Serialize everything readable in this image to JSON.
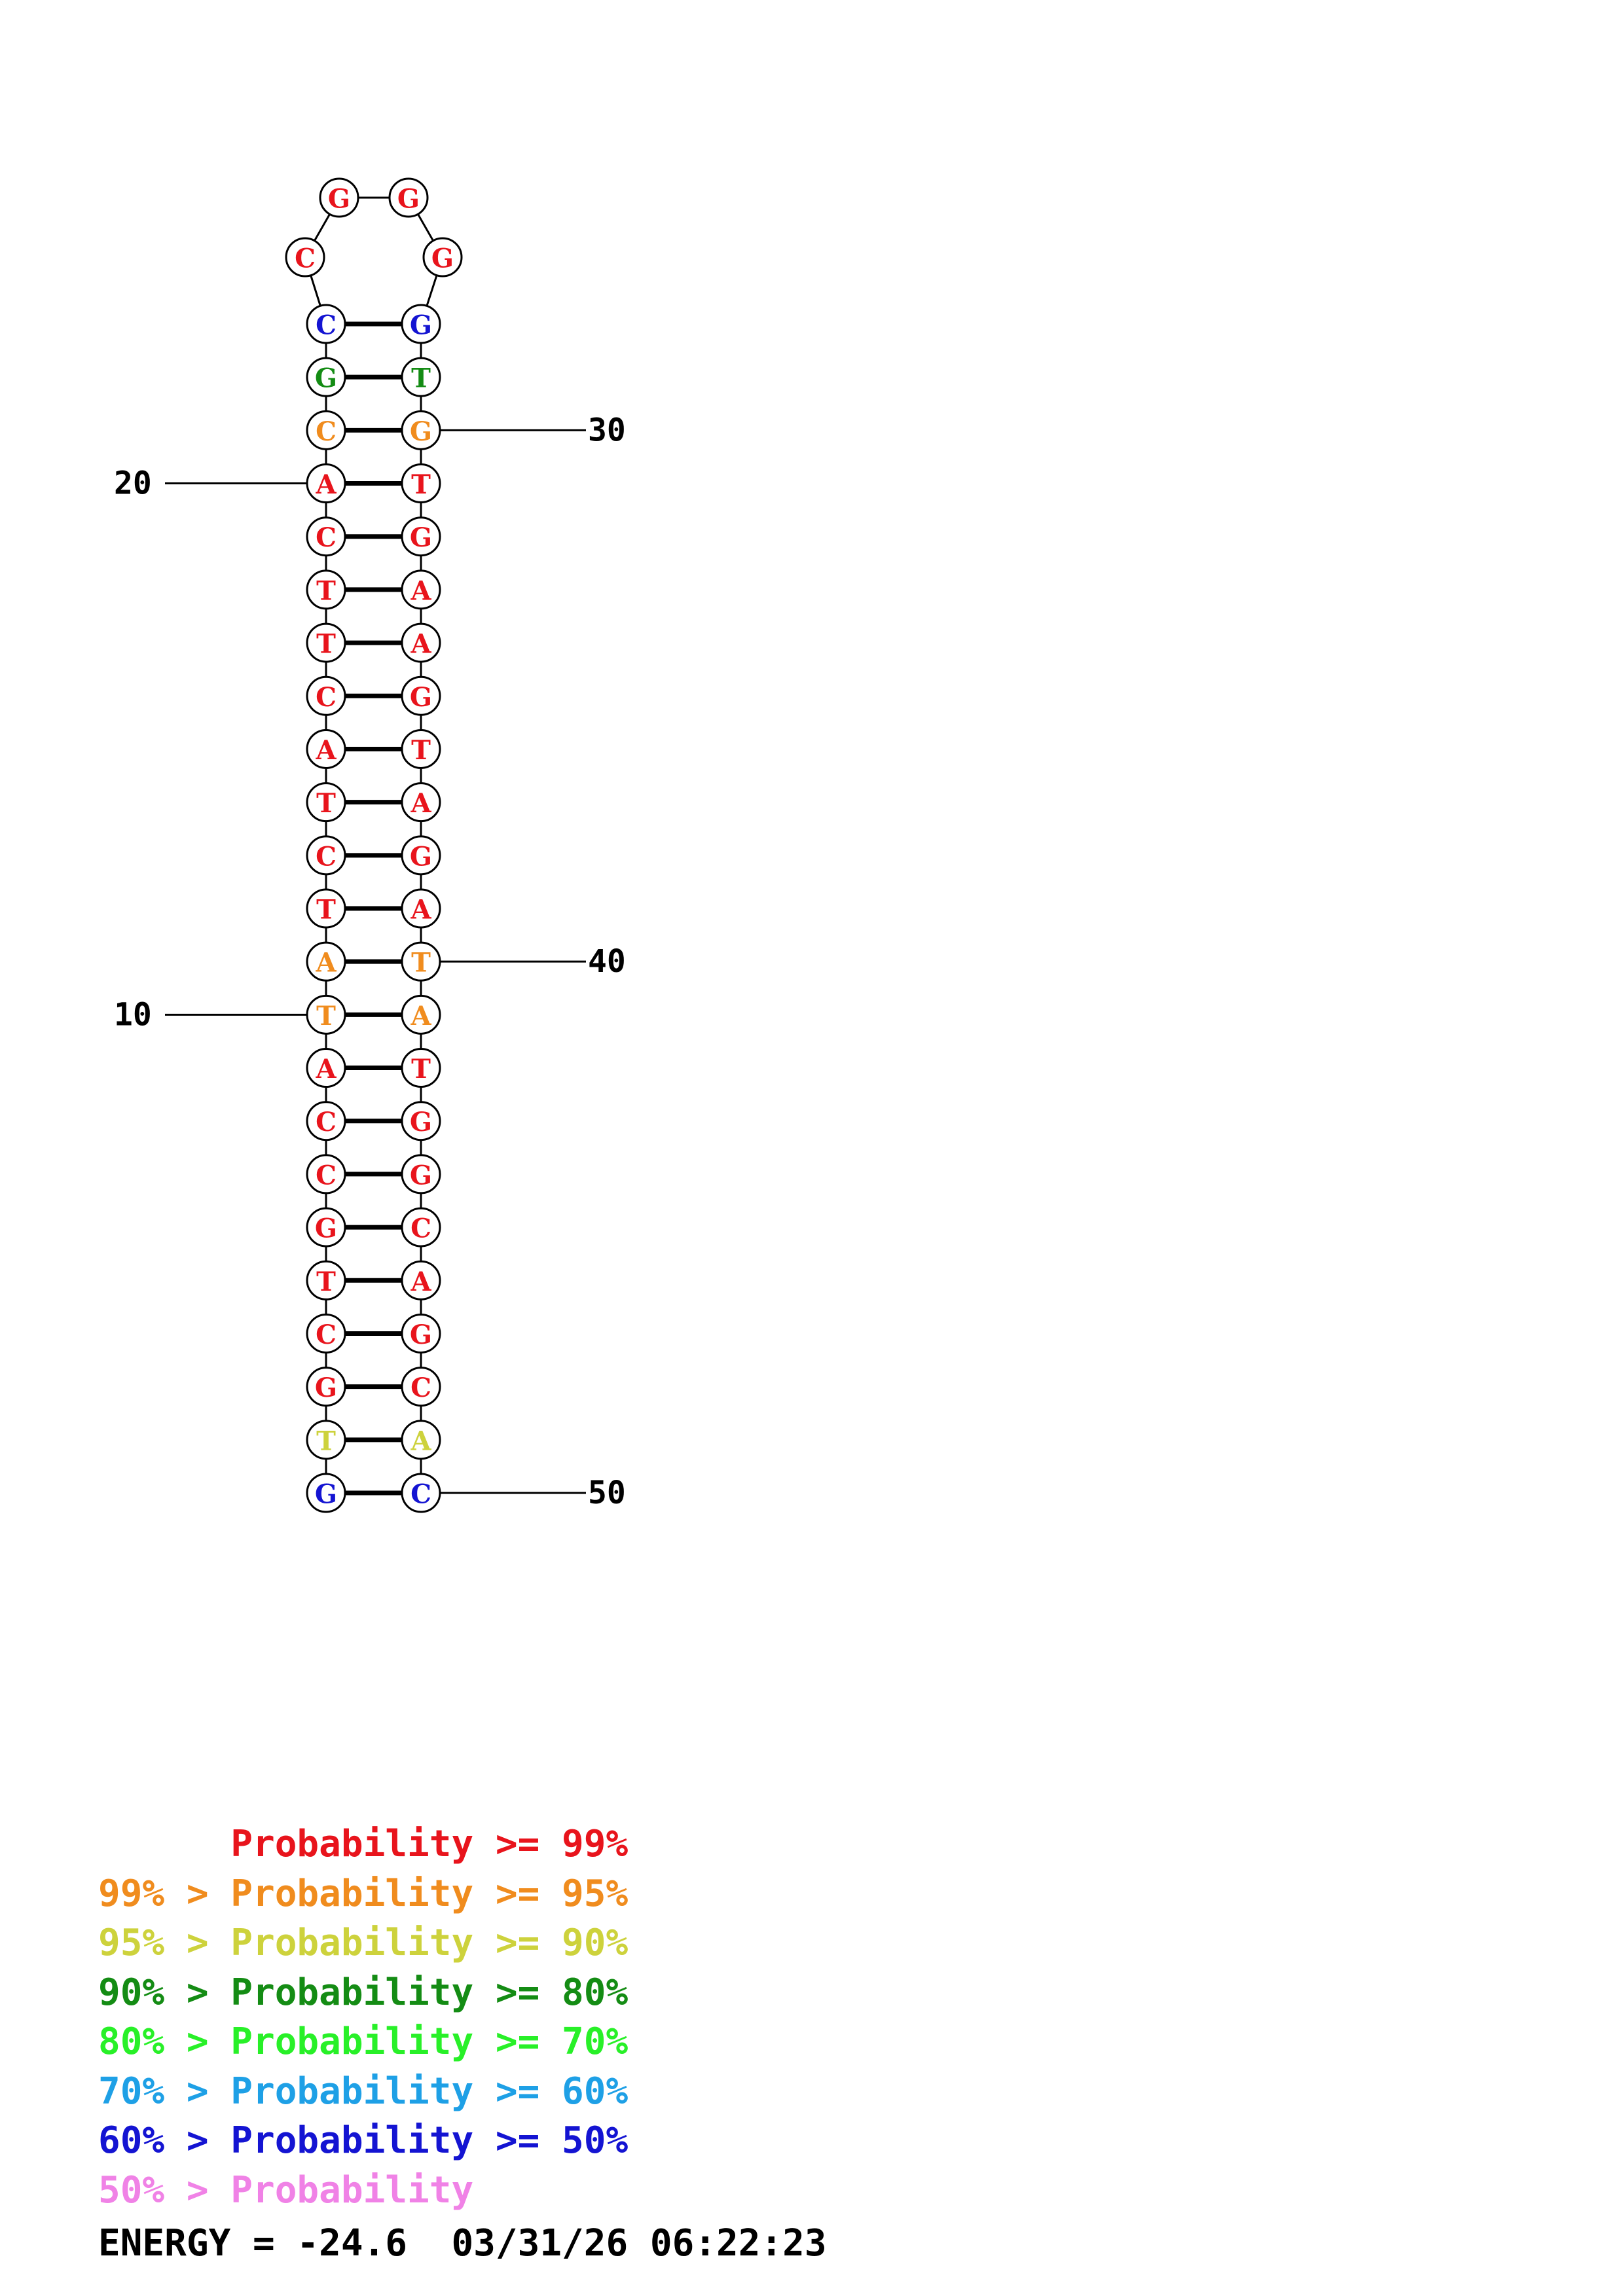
{
  "colors": {
    "p99": "#e8141c",
    "p95": "#f08c1e",
    "p90": "#cdd23c",
    "p80": "#148c14",
    "p70": "#28f028",
    "p60": "#1ea0e6",
    "p50": "#1414d2",
    "plt50": "#f082e6"
  },
  "structure": {
    "left_strand": [
      {
        "pos": 1,
        "base": "G",
        "tier": "p50"
      },
      {
        "pos": 2,
        "base": "T",
        "tier": "p90"
      },
      {
        "pos": 3,
        "base": "G",
        "tier": "p99"
      },
      {
        "pos": 4,
        "base": "C",
        "tier": "p99"
      },
      {
        "pos": 5,
        "base": "T",
        "tier": "p99"
      },
      {
        "pos": 6,
        "base": "G",
        "tier": "p99"
      },
      {
        "pos": 7,
        "base": "C",
        "tier": "p99"
      },
      {
        "pos": 8,
        "base": "C",
        "tier": "p99"
      },
      {
        "pos": 9,
        "base": "A",
        "tier": "p99"
      },
      {
        "pos": 10,
        "base": "T",
        "tier": "p95"
      },
      {
        "pos": 11,
        "base": "A",
        "tier": "p95"
      },
      {
        "pos": 12,
        "base": "T",
        "tier": "p99"
      },
      {
        "pos": 13,
        "base": "C",
        "tier": "p99"
      },
      {
        "pos": 14,
        "base": "T",
        "tier": "p99"
      },
      {
        "pos": 15,
        "base": "A",
        "tier": "p99"
      },
      {
        "pos": 16,
        "base": "C",
        "tier": "p99"
      },
      {
        "pos": 17,
        "base": "T",
        "tier": "p99"
      },
      {
        "pos": 18,
        "base": "T",
        "tier": "p99"
      },
      {
        "pos": 19,
        "base": "C",
        "tier": "p99"
      },
      {
        "pos": 20,
        "base": "A",
        "tier": "p99"
      },
      {
        "pos": 21,
        "base": "C",
        "tier": "p95"
      },
      {
        "pos": 22,
        "base": "G",
        "tier": "p80"
      },
      {
        "pos": 23,
        "base": "C",
        "tier": "p50"
      }
    ],
    "loop": [
      {
        "pos": 24,
        "base": "C",
        "tier": "p99"
      },
      {
        "pos": 25,
        "base": "G",
        "tier": "p99"
      },
      {
        "pos": 26,
        "base": "G",
        "tier": "p99"
      },
      {
        "pos": 27,
        "base": "G",
        "tier": "p99"
      }
    ],
    "right_strand": [
      {
        "pos": 28,
        "base": "G",
        "tier": "p50"
      },
      {
        "pos": 29,
        "base": "T",
        "tier": "p80"
      },
      {
        "pos": 30,
        "base": "G",
        "tier": "p95"
      },
      {
        "pos": 31,
        "base": "T",
        "tier": "p99"
      },
      {
        "pos": 32,
        "base": "G",
        "tier": "p99"
      },
      {
        "pos": 33,
        "base": "A",
        "tier": "p99"
      },
      {
        "pos": 34,
        "base": "A",
        "tier": "p99"
      },
      {
        "pos": 35,
        "base": "G",
        "tier": "p99"
      },
      {
        "pos": 36,
        "base": "T",
        "tier": "p99"
      },
      {
        "pos": 37,
        "base": "A",
        "tier": "p99"
      },
      {
        "pos": 38,
        "base": "G",
        "tier": "p99"
      },
      {
        "pos": 39,
        "base": "A",
        "tier": "p99"
      },
      {
        "pos": 40,
        "base": "T",
        "tier": "p95"
      },
      {
        "pos": 41,
        "base": "A",
        "tier": "p95"
      },
      {
        "pos": 42,
        "base": "T",
        "tier": "p99"
      },
      {
        "pos": 43,
        "base": "G",
        "tier": "p99"
      },
      {
        "pos": 44,
        "base": "G",
        "tier": "p99"
      },
      {
        "pos": 45,
        "base": "C",
        "tier": "p99"
      },
      {
        "pos": 46,
        "base": "A",
        "tier": "p99"
      },
      {
        "pos": 47,
        "base": "G",
        "tier": "p99"
      },
      {
        "pos": 48,
        "base": "C",
        "tier": "p99"
      },
      {
        "pos": 49,
        "base": "A",
        "tier": "p90"
      },
      {
        "pos": 50,
        "base": "C",
        "tier": "p50"
      }
    ],
    "position_labels": [
      {
        "text": "10",
        "pos": 10
      },
      {
        "text": "20",
        "pos": 20
      },
      {
        "text": "30",
        "pos": 30
      },
      {
        "text": "40",
        "pos": 40
      },
      {
        "text": "50",
        "pos": 50
      }
    ]
  },
  "legend": [
    {
      "tier": "p99",
      "text": "      Probability >= 99%"
    },
    {
      "tier": "p95",
      "text": "99% > Probability >= 95%"
    },
    {
      "tier": "p90",
      "text": "95% > Probability >= 90%"
    },
    {
      "tier": "p80",
      "text": "90% > Probability >= 80%"
    },
    {
      "tier": "p70",
      "text": "80% > Probability >= 70%"
    },
    {
      "tier": "p60",
      "text": "70% > Probability >= 60%"
    },
    {
      "tier": "p50",
      "text": "60% > Probability >= 50%"
    },
    {
      "tier": "plt50",
      "text": "50% > Probability"
    }
  ],
  "footer": {
    "energy": "ENERGY = -24.6",
    "datetime": "03/31/26 06:22:23"
  }
}
